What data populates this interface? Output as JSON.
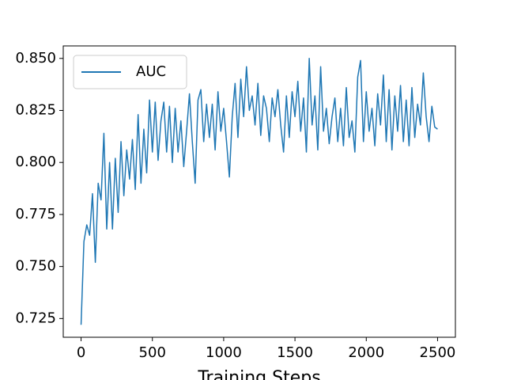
{
  "chart_data": {
    "type": "line",
    "xlabel": "Training Steps",
    "x": [
      0,
      20,
      40,
      60,
      80,
      100,
      120,
      140,
      160,
      180,
      200,
      220,
      240,
      260,
      280,
      300,
      320,
      340,
      360,
      380,
      400,
      420,
      440,
      460,
      480,
      500,
      520,
      540,
      560,
      580,
      600,
      620,
      640,
      660,
      680,
      700,
      720,
      740,
      760,
      780,
      800,
      820,
      840,
      860,
      880,
      900,
      920,
      940,
      960,
      980,
      1000,
      1020,
      1040,
      1060,
      1080,
      1100,
      1120,
      1140,
      1160,
      1180,
      1200,
      1220,
      1240,
      1260,
      1280,
      1300,
      1320,
      1340,
      1360,
      1380,
      1400,
      1420,
      1440,
      1460,
      1480,
      1500,
      1520,
      1540,
      1560,
      1580,
      1600,
      1620,
      1640,
      1660,
      1680,
      1700,
      1720,
      1740,
      1760,
      1780,
      1800,
      1820,
      1840,
      1860,
      1880,
      1900,
      1920,
      1940,
      1960,
      1980,
      2000,
      2020,
      2040,
      2060,
      2080,
      2100,
      2120,
      2140,
      2160,
      2180,
      2200,
      2220,
      2240,
      2260,
      2280,
      2300,
      2320,
      2340,
      2360,
      2380,
      2400,
      2420,
      2440,
      2460,
      2480,
      2500
    ],
    "series": [
      {
        "name": "AUC",
        "color": "#1f77b4",
        "values": [
          0.722,
          0.762,
          0.77,
          0.765,
          0.785,
          0.752,
          0.79,
          0.782,
          0.814,
          0.768,
          0.8,
          0.768,
          0.802,
          0.776,
          0.81,
          0.784,
          0.806,
          0.792,
          0.811,
          0.787,
          0.823,
          0.79,
          0.816,
          0.795,
          0.83,
          0.805,
          0.829,
          0.801,
          0.82,
          0.829,
          0.805,
          0.827,
          0.8,
          0.826,
          0.805,
          0.82,
          0.798,
          0.815,
          0.833,
          0.81,
          0.79,
          0.83,
          0.835,
          0.81,
          0.828,
          0.812,
          0.828,
          0.806,
          0.834,
          0.815,
          0.826,
          0.81,
          0.793,
          0.822,
          0.838,
          0.812,
          0.84,
          0.822,
          0.846,
          0.825,
          0.832,
          0.818,
          0.838,
          0.813,
          0.832,
          0.826,
          0.81,
          0.831,
          0.822,
          0.835,
          0.818,
          0.805,
          0.832,
          0.812,
          0.834,
          0.822,
          0.839,
          0.815,
          0.831,
          0.805,
          0.85,
          0.818,
          0.832,
          0.806,
          0.846,
          0.815,
          0.826,
          0.809,
          0.822,
          0.831,
          0.81,
          0.826,
          0.808,
          0.836,
          0.812,
          0.82,
          0.805,
          0.841,
          0.849,
          0.81,
          0.834,
          0.815,
          0.826,
          0.808,
          0.833,
          0.818,
          0.842,
          0.81,
          0.835,
          0.806,
          0.832,
          0.815,
          0.837,
          0.81,
          0.83,
          0.808,
          0.836,
          0.812,
          0.828,
          0.818,
          0.843,
          0.822,
          0.81,
          0.827,
          0.817,
          0.816
        ]
      }
    ],
    "xlim": [
      -125,
      2625
    ],
    "ylim": [
      0.716,
      0.856
    ],
    "xticks": [
      0,
      500,
      1000,
      1500,
      2000,
      2500
    ],
    "yticks": [
      {
        "value": 0.725,
        "label": "0.725"
      },
      {
        "value": 0.75,
        "label": "0.750"
      },
      {
        "value": 0.775,
        "label": "0.775"
      },
      {
        "value": 0.8,
        "label": "0.800"
      },
      {
        "value": 0.825,
        "label": "0.825"
      },
      {
        "value": 0.85,
        "label": "0.850"
      }
    ],
    "legend": "upper left",
    "grid": false
  }
}
